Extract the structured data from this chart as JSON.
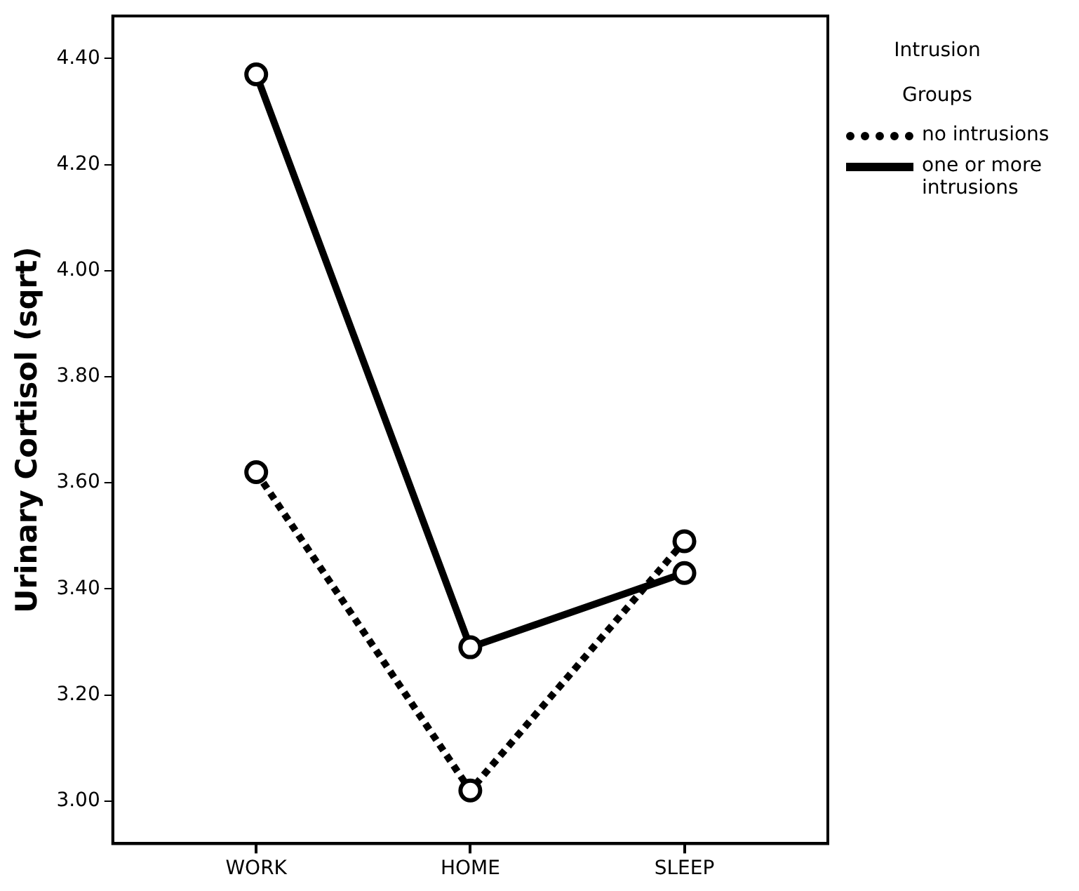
{
  "chart_data": {
    "type": "line",
    "ylabel": "Urinary Cortisol (sqrt)",
    "legend_title": "Intrusion Groups",
    "legend": "top right",
    "marker": "circle",
    "grid": false,
    "categories": [
      "WORK",
      "HOME",
      "SLEEP"
    ],
    "ylim": [
      2.92,
      4.48
    ],
    "yticks": [
      {
        "value": 3,
        "label": "3.00"
      },
      {
        "value": 3.2,
        "label": "3.20"
      },
      {
        "value": 3.4,
        "label": "3.40"
      },
      {
        "value": 3.6,
        "label": "3.60"
      },
      {
        "value": 3.8,
        "label": "3.80"
      },
      {
        "value": 4,
        "label": "4.00"
      },
      {
        "value": 4.2,
        "label": "4.20"
      },
      {
        "value": 4.4,
        "label": "4.40"
      }
    ],
    "series": [
      {
        "name": "no intrusions",
        "color": "#000000",
        "line_style": "dotted",
        "values": [
          3.62,
          3.02,
          3.49
        ]
      },
      {
        "name": "one or more intrusions",
        "color": "#000000",
        "line_style": "solid",
        "values": [
          4.37,
          3.29,
          3.43
        ]
      }
    ]
  }
}
